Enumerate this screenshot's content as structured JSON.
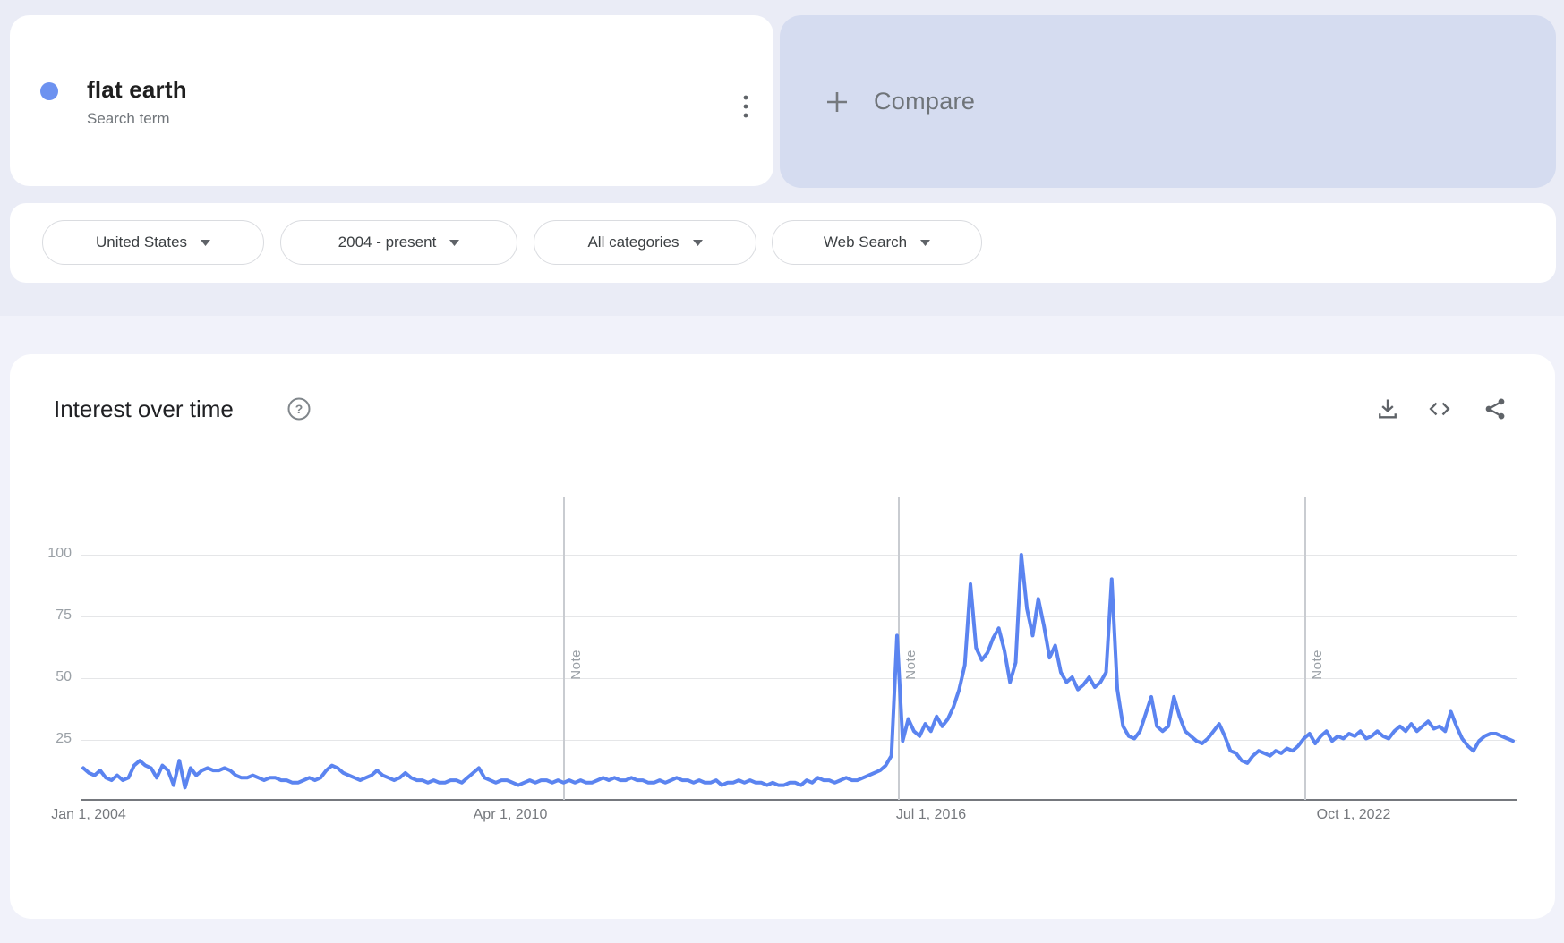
{
  "term_card": {
    "term": "flat earth",
    "subtitle": "Search term",
    "menu_icon": "vertical-dots-icon"
  },
  "compare_card": {
    "label": "Compare",
    "plus_icon": "plus-icon"
  },
  "filters": {
    "geo": "United States",
    "time_range": "2004 - present",
    "category": "All categories",
    "search_type": "Web Search"
  },
  "chart_header": {
    "title": "Interest over time",
    "help_icon": "help-circle-icon",
    "toolbar_icons": [
      "download-icon",
      "embed-code-icon",
      "share-icon"
    ]
  },
  "chart_data": {
    "type": "line",
    "title": "Interest over time",
    "series_name": "flat earth",
    "interval": "monthly",
    "x_start_label": "Jan 1, 2004",
    "x_end": "present",
    "ylim": [
      0,
      100
    ],
    "grid": true,
    "yticks": [
      "100",
      "75",
      "50",
      "25"
    ],
    "xticks": [
      "Jan 1, 2004",
      "Apr 1, 2010",
      "Jul 1, 2016",
      "Oct 1, 2022"
    ],
    "note_label": "Note",
    "values": [
      13,
      11,
      10,
      12,
      9,
      8,
      10,
      8,
      9,
      14,
      16,
      14,
      13,
      9,
      14,
      12,
      6,
      16,
      5,
      13,
      10,
      12,
      13,
      12,
      12,
      13,
      12,
      10,
      9,
      9,
      10,
      9,
      8,
      9,
      9,
      8,
      8,
      7,
      7,
      8,
      9,
      8,
      9,
      12,
      14,
      13,
      11,
      10,
      9,
      8,
      9,
      10,
      12,
      10,
      9,
      8,
      9,
      11,
      9,
      8,
      8,
      7,
      8,
      7,
      7,
      8,
      8,
      7,
      9,
      11,
      13,
      9,
      8,
      7,
      8,
      8,
      7,
      6,
      7,
      8,
      7,
      8,
      8,
      7,
      8,
      7,
      8,
      7,
      8,
      7,
      7,
      8,
      9,
      8,
      9,
      8,
      8,
      9,
      8,
      8,
      7,
      7,
      8,
      7,
      8,
      9,
      8,
      8,
      7,
      8,
      7,
      7,
      8,
      6,
      7,
      7,
      8,
      7,
      8,
      7,
      7,
      6,
      7,
      6,
      6,
      7,
      7,
      6,
      8,
      7,
      9,
      8,
      8,
      7,
      8,
      9,
      8,
      8,
      9,
      10,
      11,
      12,
      14,
      18,
      67,
      24,
      33,
      28,
      26,
      31,
      28,
      34,
      30,
      33,
      38,
      45,
      55,
      88,
      62,
      57,
      60,
      66,
      70,
      61,
      48,
      56,
      100,
      78,
      67,
      82,
      71,
      58,
      63,
      52,
      48,
      50,
      45,
      47,
      50,
      46,
      48,
      52,
      90,
      45,
      30,
      26,
      25,
      28,
      35,
      42,
      30,
      28,
      30,
      42,
      34,
      28,
      26,
      24,
      23,
      25,
      28,
      31,
      26,
      20,
      19,
      16,
      15,
      18,
      20,
      19,
      18,
      20,
      19,
      21,
      20,
      22,
      25,
      27,
      23,
      26,
      28,
      24,
      26,
      25,
      27,
      26,
      28,
      25,
      26,
      28,
      26,
      25,
      28,
      30,
      28,
      31,
      28,
      30,
      32,
      29,
      30,
      28,
      36,
      30,
      25,
      22,
      20,
      24,
      26,
      27,
      27,
      26,
      25,
      24
    ]
  },
  "colors": {
    "line_blue": "#5b84f0",
    "term_dot_blue": "#6d92f0",
    "compare_bg": "#d5dcf0",
    "page_band": "#eaecf6",
    "page_bg": "#f1f2fa",
    "icon_gray": "#5f6368",
    "text_gray": "#70757a"
  }
}
